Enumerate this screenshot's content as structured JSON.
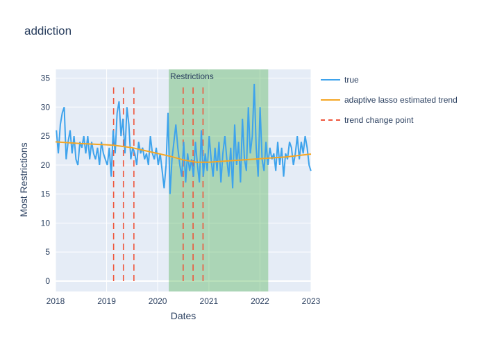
{
  "chart_data": {
    "type": "line",
    "title": "addiction",
    "xlabel": "Dates",
    "ylabel": "Most Restrictions",
    "x_range": [
      "2018-01-01",
      "2023-01-01"
    ],
    "y_range": [
      -1.8,
      36.5
    ],
    "x_ticks": [
      "2018",
      "2019",
      "2020",
      "2021",
      "2022",
      "2023"
    ],
    "y_ticks": [
      0,
      5,
      10,
      15,
      20,
      25,
      30,
      35
    ],
    "grid": true,
    "legend_position": "right",
    "series": [
      {
        "name": "true",
        "color": "#3ea3ec",
        "x": [
          "2018-01-07",
          "2018-01-21",
          "2018-02-04",
          "2018-02-18",
          "2018-03-04",
          "2018-03-18",
          "2018-04-01",
          "2018-04-15",
          "2018-04-29",
          "2018-05-13",
          "2018-05-27",
          "2018-06-10",
          "2018-06-24",
          "2018-07-08",
          "2018-07-22",
          "2018-08-05",
          "2018-08-19",
          "2018-09-02",
          "2018-09-16",
          "2018-09-30",
          "2018-10-14",
          "2018-10-28",
          "2018-11-11",
          "2018-11-25",
          "2018-12-09",
          "2018-12-23",
          "2019-01-06",
          "2019-01-20",
          "2019-02-03",
          "2019-02-17",
          "2019-03-03",
          "2019-03-17",
          "2019-03-31",
          "2019-04-14",
          "2019-04-28",
          "2019-05-12",
          "2019-05-26",
          "2019-06-09",
          "2019-06-23",
          "2019-07-07",
          "2019-07-21",
          "2019-08-04",
          "2019-08-18",
          "2019-09-01",
          "2019-09-15",
          "2019-09-29",
          "2019-10-13",
          "2019-10-27",
          "2019-11-10",
          "2019-11-24",
          "2019-12-08",
          "2019-12-22",
          "2020-01-05",
          "2020-01-19",
          "2020-02-02",
          "2020-02-16",
          "2020-03-01",
          "2020-03-15",
          "2020-03-29",
          "2020-04-12",
          "2020-04-26",
          "2020-05-10",
          "2020-05-24",
          "2020-06-07",
          "2020-06-21",
          "2020-07-05",
          "2020-07-19",
          "2020-08-02",
          "2020-08-16",
          "2020-08-30",
          "2020-09-13",
          "2020-09-27",
          "2020-10-11",
          "2020-10-25",
          "2020-11-08",
          "2020-11-22",
          "2020-12-06",
          "2020-12-20",
          "2021-01-03",
          "2021-01-17",
          "2021-01-31",
          "2021-02-14",
          "2021-02-28",
          "2021-03-14",
          "2021-03-28",
          "2021-04-11",
          "2021-04-25",
          "2021-05-09",
          "2021-05-23",
          "2021-06-06",
          "2021-06-20",
          "2021-07-04",
          "2021-07-18",
          "2021-08-01",
          "2021-08-15",
          "2021-08-29",
          "2021-09-12",
          "2021-09-26",
          "2021-10-10",
          "2021-10-24",
          "2021-11-07",
          "2021-11-21",
          "2021-12-05",
          "2021-12-19",
          "2022-01-02",
          "2022-01-16",
          "2022-01-30",
          "2022-02-13",
          "2022-02-27",
          "2022-03-13",
          "2022-03-27",
          "2022-04-10",
          "2022-04-24",
          "2022-05-08",
          "2022-05-22",
          "2022-06-05",
          "2022-06-19",
          "2022-07-03",
          "2022-07-17",
          "2022-07-31",
          "2022-08-14",
          "2022-08-28",
          "2022-09-11",
          "2022-09-25",
          "2022-10-09",
          "2022-10-23",
          "2022-11-06",
          "2022-11-20",
          "2022-12-04",
          "2022-12-18",
          "2022-12-31"
        ],
        "values": [
          26,
          22,
          27,
          29,
          30,
          21,
          24,
          26,
          22,
          25,
          21,
          20,
          24,
          23,
          25,
          22,
          25,
          21,
          24,
          22,
          21,
          23,
          20,
          24,
          22,
          21,
          20,
          23,
          18,
          26,
          22,
          29,
          31,
          25,
          28,
          22,
          30,
          27,
          21,
          23,
          22,
          20,
          24,
          22,
          23,
          21,
          22,
          20,
          25,
          22,
          21,
          23,
          20,
          22,
          19,
          16,
          20,
          29,
          15,
          21,
          24,
          27,
          23,
          20,
          18,
          24,
          17,
          22,
          19,
          21,
          18,
          24,
          20,
          17,
          26,
          18,
          22,
          19,
          25,
          21,
          18,
          23,
          19,
          24,
          17,
          22,
          25,
          21,
          18,
          23,
          16,
          27,
          20,
          24,
          17,
          28,
          21,
          19,
          30,
          22,
          25,
          34,
          23,
          18,
          30,
          21,
          19,
          24,
          20,
          23,
          21,
          22,
          19,
          24,
          20,
          23,
          18,
          22,
          21,
          24,
          23,
          20,
          22,
          25,
          21,
          24,
          22,
          25,
          23,
          20,
          19
        ]
      },
      {
        "name": "adaptive lasso estimated trend",
        "color": "#f5a623",
        "x": [
          "2018-01-01",
          "2018-07-01",
          "2019-01-01",
          "2019-03-01",
          "2019-05-01",
          "2019-07-01",
          "2019-10-01",
          "2020-01-01",
          "2020-04-01",
          "2020-07-01",
          "2020-10-01",
          "2021-01-01",
          "2021-07-01",
          "2022-01-01",
          "2022-07-01",
          "2023-01-01"
        ],
        "values": [
          24.0,
          23.7,
          23.5,
          23.4,
          23.2,
          23.0,
          22.5,
          22.0,
          21.5,
          20.9,
          20.5,
          20.5,
          20.8,
          21.1,
          21.4,
          21.9
        ]
      }
    ],
    "change_points": {
      "name": "trend change point",
      "color": "#ef553b",
      "dates": [
        "2019-02-20",
        "2019-05-01",
        "2019-07-15",
        "2020-07-01",
        "2020-09-10",
        "2020-11-20"
      ]
    },
    "shaded_region": {
      "label": "Restrictions",
      "start": "2020-03-20",
      "end": "2022-03-01",
      "color": "#4caf50"
    }
  }
}
